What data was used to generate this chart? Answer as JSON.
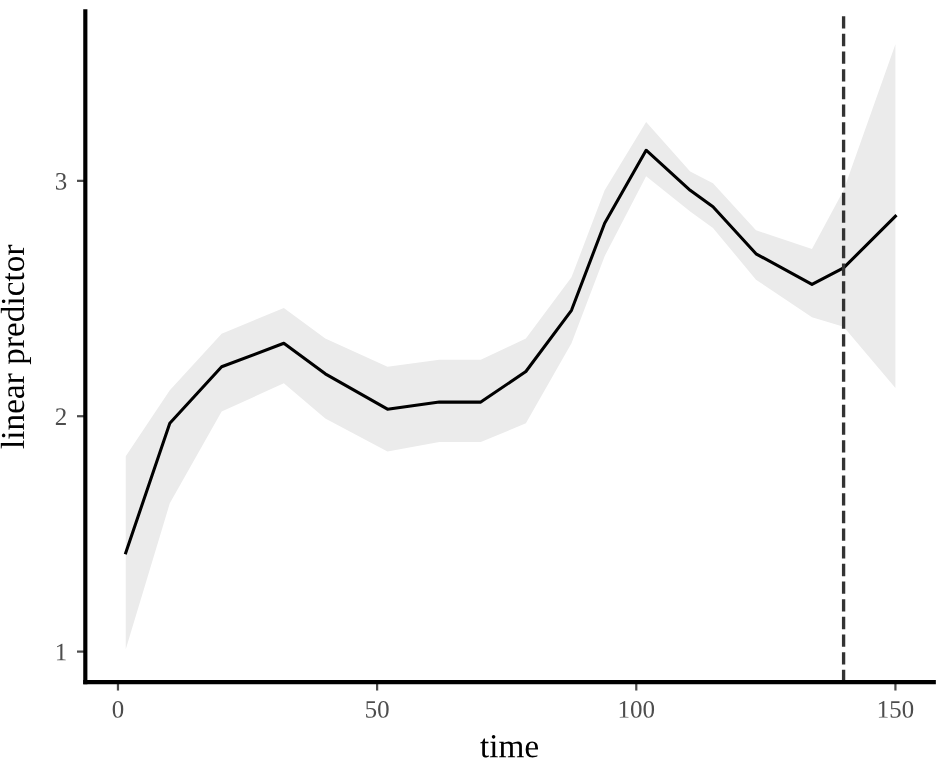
{
  "chart_data": {
    "type": "line",
    "xlabel": "time",
    "ylabel": "linear predictor",
    "x": [
      1.5,
      10,
      20,
      32,
      40,
      52,
      62,
      70,
      78.7,
      87.5,
      93.9,
      101.9,
      110.4,
      114.8,
      123.1,
      133.9,
      140,
      150
    ],
    "series": [
      {
        "color": "#000000",
        "values": [
          1.42,
          1.97,
          2.21,
          2.31,
          2.18,
          2.03,
          2.06,
          2.06,
          2.19,
          2.45,
          2.82,
          3.13,
          2.96,
          2.89,
          2.69,
          2.56,
          2.63,
          2.85
        ],
        "lower": [
          1.01,
          1.63,
          2.02,
          2.14,
          1.99,
          1.85,
          1.89,
          1.89,
          1.97,
          2.31,
          2.68,
          3.02,
          2.87,
          2.8,
          2.58,
          2.42,
          2.38,
          2.12
        ],
        "upper": [
          1.83,
          2.11,
          2.35,
          2.46,
          2.33,
          2.21,
          2.24,
          2.24,
          2.33,
          2.59,
          2.96,
          3.25,
          3.04,
          2.99,
          2.79,
          2.71,
          2.96,
          3.58
        ]
      }
    ],
    "xlim": [
      -6.3,
      157.4
    ],
    "ylim": [
      0.87,
      3.72
    ],
    "xticks": [
      0,
      50,
      100,
      150
    ],
    "yticks": [
      1,
      2,
      3
    ],
    "ref_lines": [
      {
        "axis": "x",
        "value": 140,
        "color": "#333333",
        "line_style": "dashed"
      }
    ],
    "grid": false,
    "legend": false,
    "line_style": "solid"
  }
}
